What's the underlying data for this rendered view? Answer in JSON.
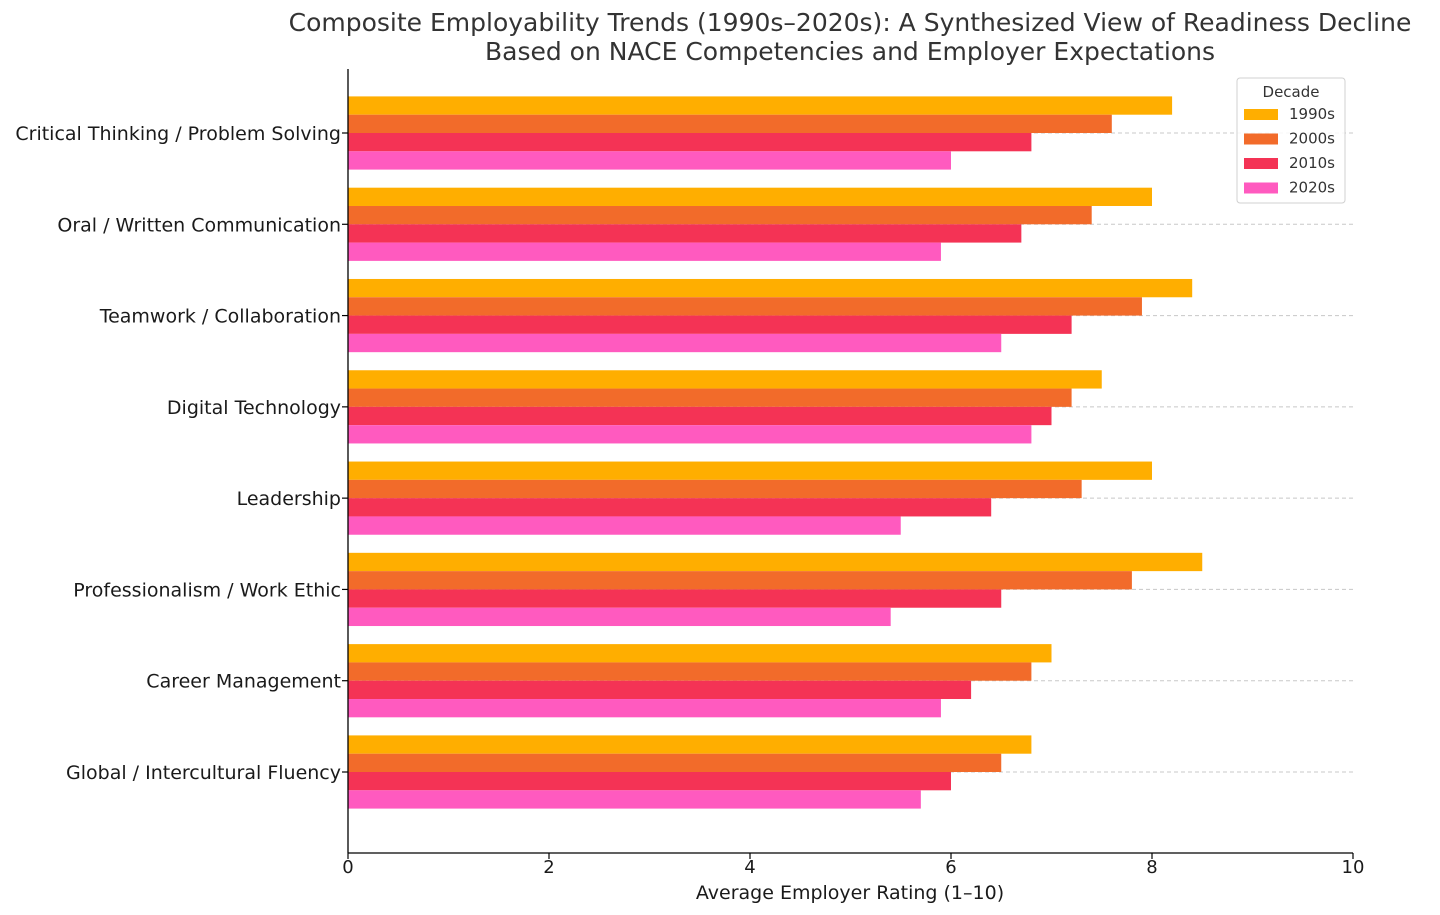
{
  "chart_data": {
    "type": "bar",
    "orientation": "horizontal",
    "title_lines": [
      "Composite Employability Trends (1990s–2020s): A Synthesized View of Readiness Decline",
      "Based on NACE Competencies and Employer Expectations"
    ],
    "xlabel": "Average Employer Rating (1–10)",
    "ylabel": "",
    "xlim": [
      0,
      10
    ],
    "xticks": [
      "0",
      "2",
      "4",
      "6",
      "8",
      "10"
    ],
    "grid": "horizontal dashed at category centers",
    "legend_title": "Decade",
    "legend_placement": "top-right",
    "categories": [
      "Critical Thinking / Problem Solving",
      "Oral / Written Communication",
      "Teamwork / Collaboration",
      "Digital Technology",
      "Leadership",
      "Professionalism / Work Ethic",
      "Career Management",
      "Global / Intercultural Fluency"
    ],
    "series": [
      {
        "name": "1990s",
        "color": "#FFAE00",
        "values": [
          8.2,
          8.0,
          8.4,
          7.5,
          8.0,
          8.5,
          7.0,
          6.8
        ]
      },
      {
        "name": "2000s",
        "color": "#F26B2A",
        "values": [
          7.6,
          7.4,
          7.9,
          7.2,
          7.3,
          7.8,
          6.8,
          6.5
        ]
      },
      {
        "name": "2010s",
        "color": "#F43355",
        "values": [
          6.8,
          6.7,
          7.2,
          7.0,
          6.4,
          6.5,
          6.2,
          6.0
        ]
      },
      {
        "name": "2020s",
        "color": "#FF5ABF",
        "values": [
          6.0,
          5.9,
          6.5,
          6.8,
          5.5,
          5.4,
          5.9,
          5.7
        ]
      }
    ]
  }
}
